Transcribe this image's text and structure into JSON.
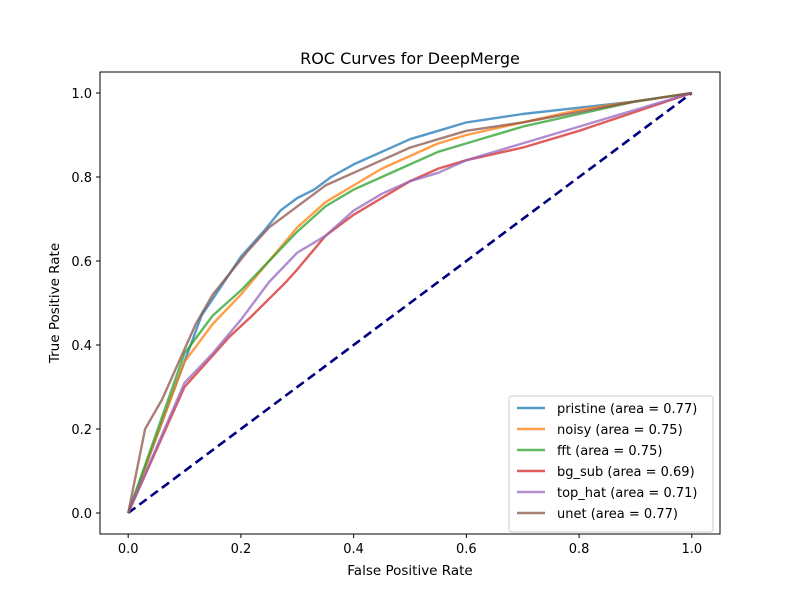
{
  "chart_data": {
    "type": "line",
    "title": "ROC Curves for DeepMerge",
    "xlabel": "False Positive Rate",
    "ylabel": "True Positive Rate",
    "xlim": [
      -0.05,
      1.05
    ],
    "ylim": [
      -0.05,
      1.05
    ],
    "xticks": [
      "0.0",
      "0.2",
      "0.4",
      "0.6",
      "0.8",
      "1.0"
    ],
    "yticks": [
      "0.0",
      "0.2",
      "0.4",
      "0.6",
      "0.8",
      "1.0"
    ],
    "grid": false,
    "legend_position": "lower-right",
    "diagonal": {
      "x": [
        0,
        1
      ],
      "y": [
        0,
        1
      ],
      "color": "#000080",
      "style": "dashed"
    },
    "series": [
      {
        "name": "pristine",
        "label": "pristine (area = 0.77)",
        "color": "#1f77b4",
        "x": [
          0,
          0.1,
          0.13,
          0.16,
          0.2,
          0.24,
          0.27,
          0.3,
          0.33,
          0.36,
          0.4,
          0.45,
          0.5,
          0.55,
          0.6,
          0.7,
          0.8,
          0.9,
          1.0
        ],
        "y": [
          0,
          0.36,
          0.47,
          0.53,
          0.61,
          0.67,
          0.72,
          0.75,
          0.77,
          0.8,
          0.83,
          0.86,
          0.89,
          0.91,
          0.93,
          0.95,
          0.965,
          0.98,
          1.0
        ]
      },
      {
        "name": "noisy",
        "label": "noisy (area = 0.75)",
        "color": "#ff7f0e",
        "x": [
          0,
          0.1,
          0.15,
          0.2,
          0.25,
          0.3,
          0.35,
          0.4,
          0.45,
          0.5,
          0.55,
          0.6,
          0.7,
          0.8,
          0.9,
          1.0
        ],
        "y": [
          0,
          0.36,
          0.45,
          0.52,
          0.6,
          0.68,
          0.74,
          0.78,
          0.82,
          0.85,
          0.88,
          0.9,
          0.93,
          0.96,
          0.98,
          1.0
        ]
      },
      {
        "name": "fft",
        "label": "fft (area = 0.75)",
        "color": "#2ca02c",
        "x": [
          0,
          0.1,
          0.15,
          0.2,
          0.25,
          0.3,
          0.35,
          0.4,
          0.45,
          0.5,
          0.55,
          0.6,
          0.7,
          0.8,
          0.9,
          1.0
        ],
        "y": [
          0,
          0.38,
          0.47,
          0.53,
          0.6,
          0.67,
          0.73,
          0.77,
          0.8,
          0.83,
          0.86,
          0.88,
          0.92,
          0.95,
          0.98,
          1.0
        ]
      },
      {
        "name": "bg_sub",
        "label": "bg_sub (area = 0.69)",
        "color": "#d62728",
        "x": [
          0,
          0.1,
          0.14,
          0.18,
          0.22,
          0.25,
          0.28,
          0.3,
          0.35,
          0.4,
          0.45,
          0.5,
          0.55,
          0.6,
          0.7,
          0.8,
          0.9,
          1.0
        ],
        "y": [
          0,
          0.3,
          0.36,
          0.42,
          0.47,
          0.51,
          0.55,
          0.58,
          0.66,
          0.71,
          0.75,
          0.79,
          0.82,
          0.84,
          0.87,
          0.91,
          0.955,
          1.0
        ]
      },
      {
        "name": "top_hat",
        "label": "top_hat (area = 0.71)",
        "color": "#9467bd",
        "x": [
          0,
          0.1,
          0.15,
          0.2,
          0.25,
          0.3,
          0.35,
          0.4,
          0.45,
          0.5,
          0.55,
          0.6,
          0.7,
          0.8,
          0.9,
          1.0
        ],
        "y": [
          0,
          0.31,
          0.38,
          0.46,
          0.55,
          0.62,
          0.66,
          0.72,
          0.76,
          0.79,
          0.81,
          0.84,
          0.88,
          0.92,
          0.96,
          1.0
        ]
      },
      {
        "name": "unet",
        "label": "unet (area = 0.77)",
        "color": "#8c564b",
        "x": [
          0,
          0.03,
          0.06,
          0.09,
          0.12,
          0.15,
          0.18,
          0.21,
          0.25,
          0.3,
          0.35,
          0.4,
          0.45,
          0.5,
          0.55,
          0.6,
          0.7,
          0.8,
          0.9,
          1.0
        ],
        "y": [
          0,
          0.2,
          0.27,
          0.36,
          0.45,
          0.52,
          0.57,
          0.62,
          0.68,
          0.73,
          0.78,
          0.81,
          0.84,
          0.87,
          0.89,
          0.91,
          0.93,
          0.955,
          0.98,
          1.0
        ]
      }
    ]
  }
}
